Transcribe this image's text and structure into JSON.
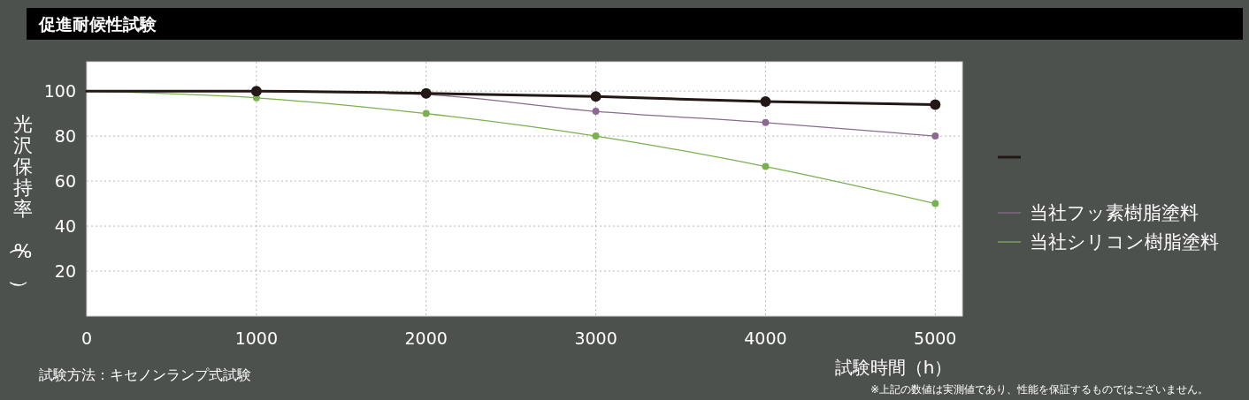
{
  "chart_data": {
    "type": "line",
    "title": "促進耐候性試験",
    "xlabel": "試験時間（h）",
    "ylabel": "光沢保持率（%）",
    "x": [
      0,
      1000,
      2000,
      3000,
      4000,
      5000
    ],
    "series": [
      {
        "color": "#231815",
        "values": [
          100,
          100,
          99,
          97.6,
          95.3,
          94
        ]
      },
      {
        "name": "当社フッ素樹脂塗料",
        "color": "#8a6a8f",
        "values": [
          100,
          100,
          98.4,
          91,
          86,
          80
        ]
      },
      {
        "name": "当社シリコン樹脂塗料",
        "color": "#7ab04f",
        "values": [
          100,
          97,
          90,
          80,
          66.5,
          50
        ]
      }
    ],
    "xlim": [
      0,
      5160
    ],
    "xticks": [
      0,
      1000,
      2000,
      3000,
      4000,
      5000
    ],
    "ylim": [
      0,
      113
    ],
    "yticks": [
      20,
      40,
      60,
      80,
      100
    ],
    "grid": true,
    "legend": "right",
    "marker": "circle",
    "line_style": "solid",
    "annotations": [
      "試験方法：キセノンランプ式試験",
      "※上記の数値は実測値であり、性能を保証するものではございません。"
    ]
  }
}
